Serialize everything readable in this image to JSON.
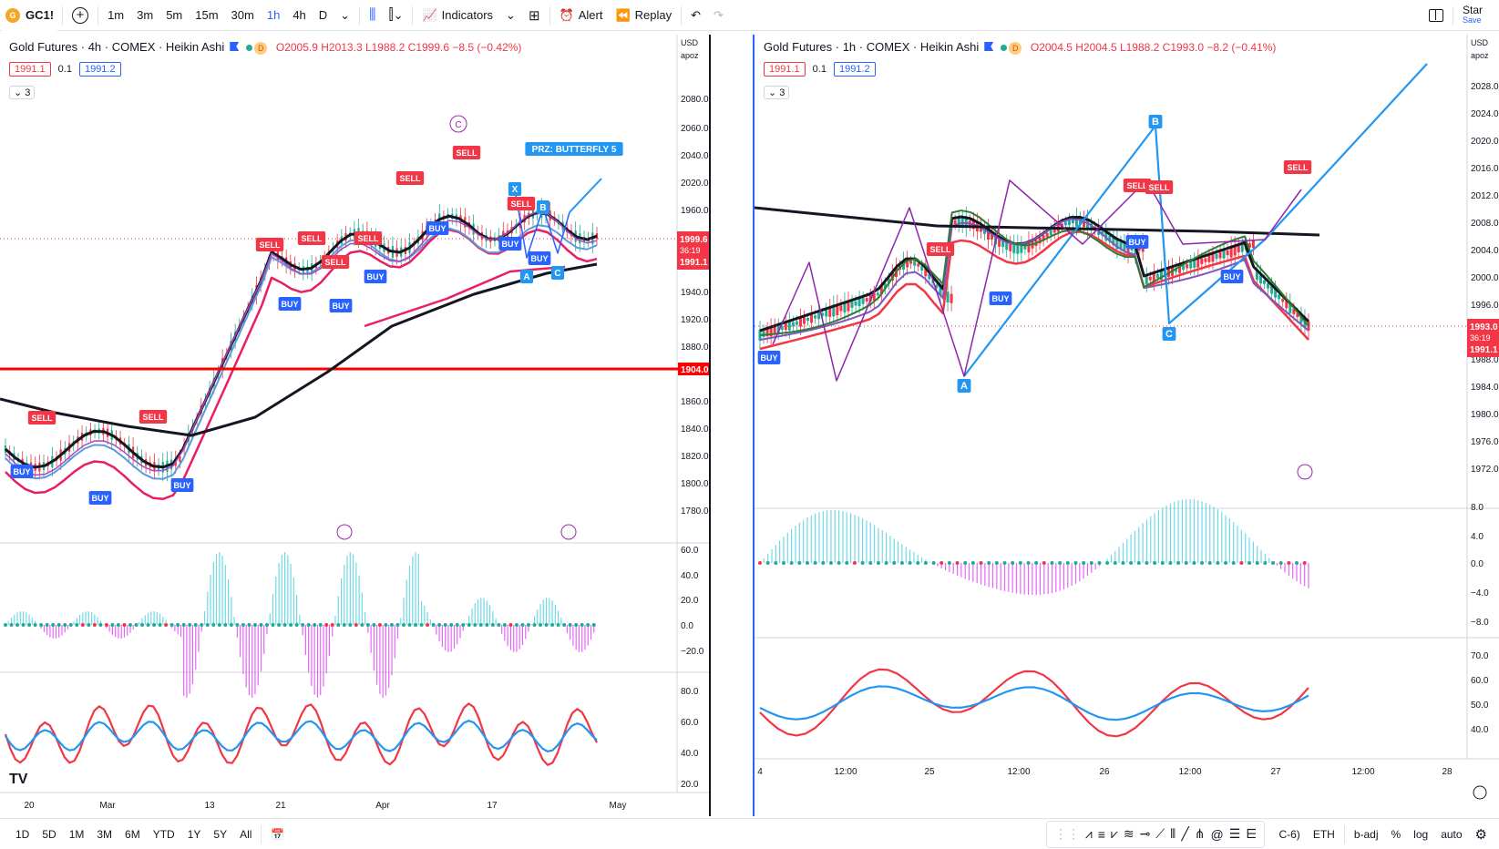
{
  "toolbar": {
    "symbol": "GC1!",
    "timeframes": [
      "1m",
      "3m",
      "5m",
      "15m",
      "30m",
      "1h",
      "4h",
      "D"
    ],
    "active_timeframe": "1h",
    "indicators_label": "Indicators",
    "alert_label": "Alert",
    "replay_label": "Replay",
    "star_label": "Star",
    "save_label": "Save"
  },
  "left": {
    "title": "Gold Futures · 4h · COMEX · Heikin Ashi",
    "ohlc": "O2005.9 H2013.3 L1988.2 C1999.6 −8.5 (−0.42%)",
    "bid": "1991.1",
    "spread": "0.1",
    "ask": "1991.2",
    "collapse": "3",
    "currency": "USD",
    "axis_label": "apoz",
    "price_ticks": [
      "2080.0",
      "2060.0",
      "2040.0",
      "2020.0",
      "1960.0",
      "1940.0",
      "1920.0",
      "1880.0",
      "1860.0",
      "1840.0",
      "1820.0",
      "1800.0",
      "1780.0"
    ],
    "price_last": "1999.6",
    "countdown": "36:19",
    "price_bid": "1991.1",
    "hline": "1904.0",
    "osc_ticks": [
      "60.0",
      "40.0",
      "20.0",
      "0.0",
      "−20.0"
    ],
    "rsi_ticks": [
      "80.0",
      "60.0",
      "40.0",
      "20.0"
    ],
    "time_ticks": [
      "20",
      "Mar",
      "13",
      "21",
      "Apr",
      "17",
      "May"
    ],
    "labels": {
      "prz": "PRZ: BUTTERFLY 5",
      "x": "X",
      "b": "B",
      "a": "A",
      "c": "C",
      "cc": "C",
      "buy": "BUY",
      "sell": "SELL"
    }
  },
  "right": {
    "title": "Gold Futures · 1h · COMEX · Heikin Ashi",
    "ohlc": "O2004.5 H2004.5 L1988.2 C1993.0 −8.2 (−0.41%)",
    "bid": "1991.1",
    "spread": "0.1",
    "ask": "1991.2",
    "collapse": "3",
    "currency": "USD",
    "axis_label": "apoz",
    "price_ticks": [
      "2028.0",
      "2024.0",
      "2020.0",
      "2016.0",
      "2012.0",
      "2008.0",
      "2004.0",
      "2000.0",
      "1996.0",
      "1988.0",
      "1984.0",
      "1980.0",
      "1976.0",
      "1972.0"
    ],
    "price_last": "1993.0",
    "countdown": "36:19",
    "price_bid": "1991.1",
    "osc_ticks": [
      "8.0",
      "4.0",
      "0.0",
      "−4.0",
      "−8.0"
    ],
    "rsi_ticks": [
      "70.0",
      "60.0",
      "50.0",
      "40.0"
    ],
    "time_ticks": [
      "4",
      "12:00",
      "25",
      "12:00",
      "26",
      "12:00",
      "27",
      "12:00",
      "28"
    ],
    "labels": {
      "a": "A",
      "b": "B",
      "c": "C",
      "buy": "BUY",
      "sell": "SELL"
    }
  },
  "bottom": {
    "ranges": [
      "1D",
      "5D",
      "1M",
      "3M",
      "6M",
      "YTD",
      "1Y",
      "5Y",
      "All"
    ],
    "tz": "C-6)",
    "session": "ETH",
    "adj": "b-adj",
    "pct": "%",
    "log": "log",
    "auto": "auto"
  },
  "colors": {
    "up": "#22ab94",
    "down": "#f23645",
    "accent": "#2962ff",
    "black": "#131722"
  }
}
